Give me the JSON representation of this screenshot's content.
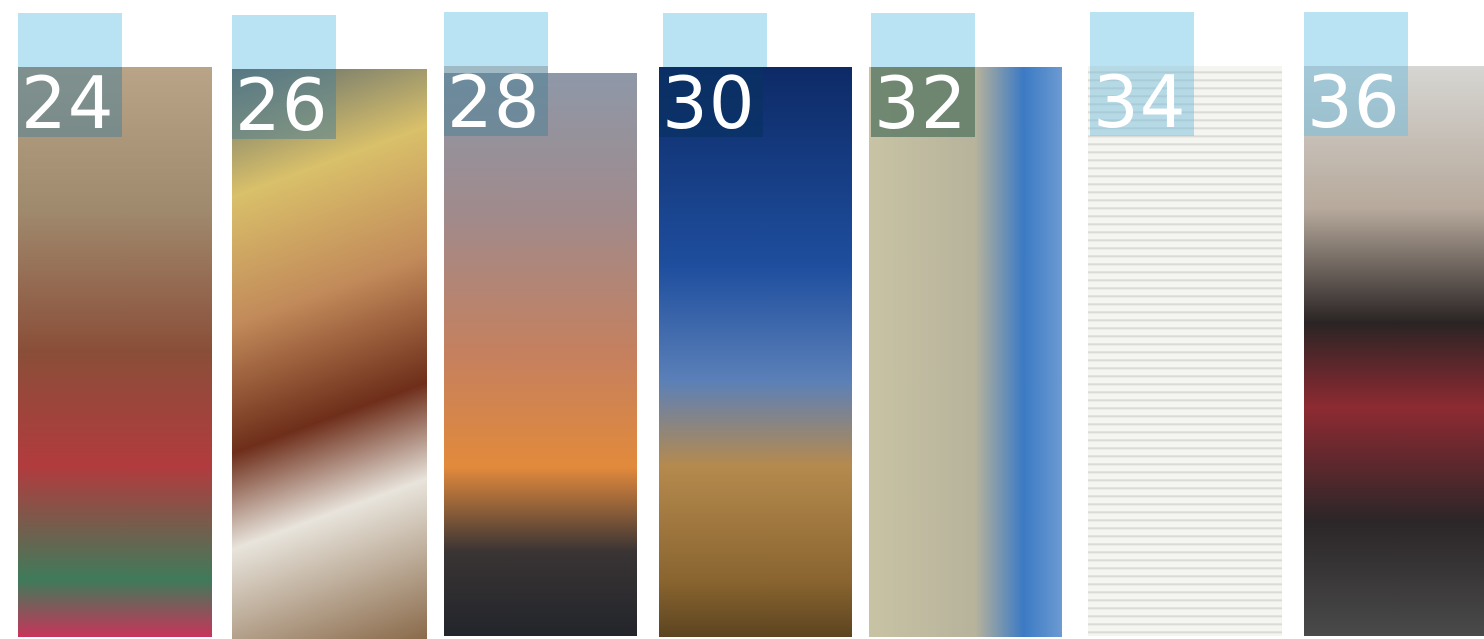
{
  "pages": [
    24,
    26,
    28,
    30,
    32,
    34,
    36
  ]
}
